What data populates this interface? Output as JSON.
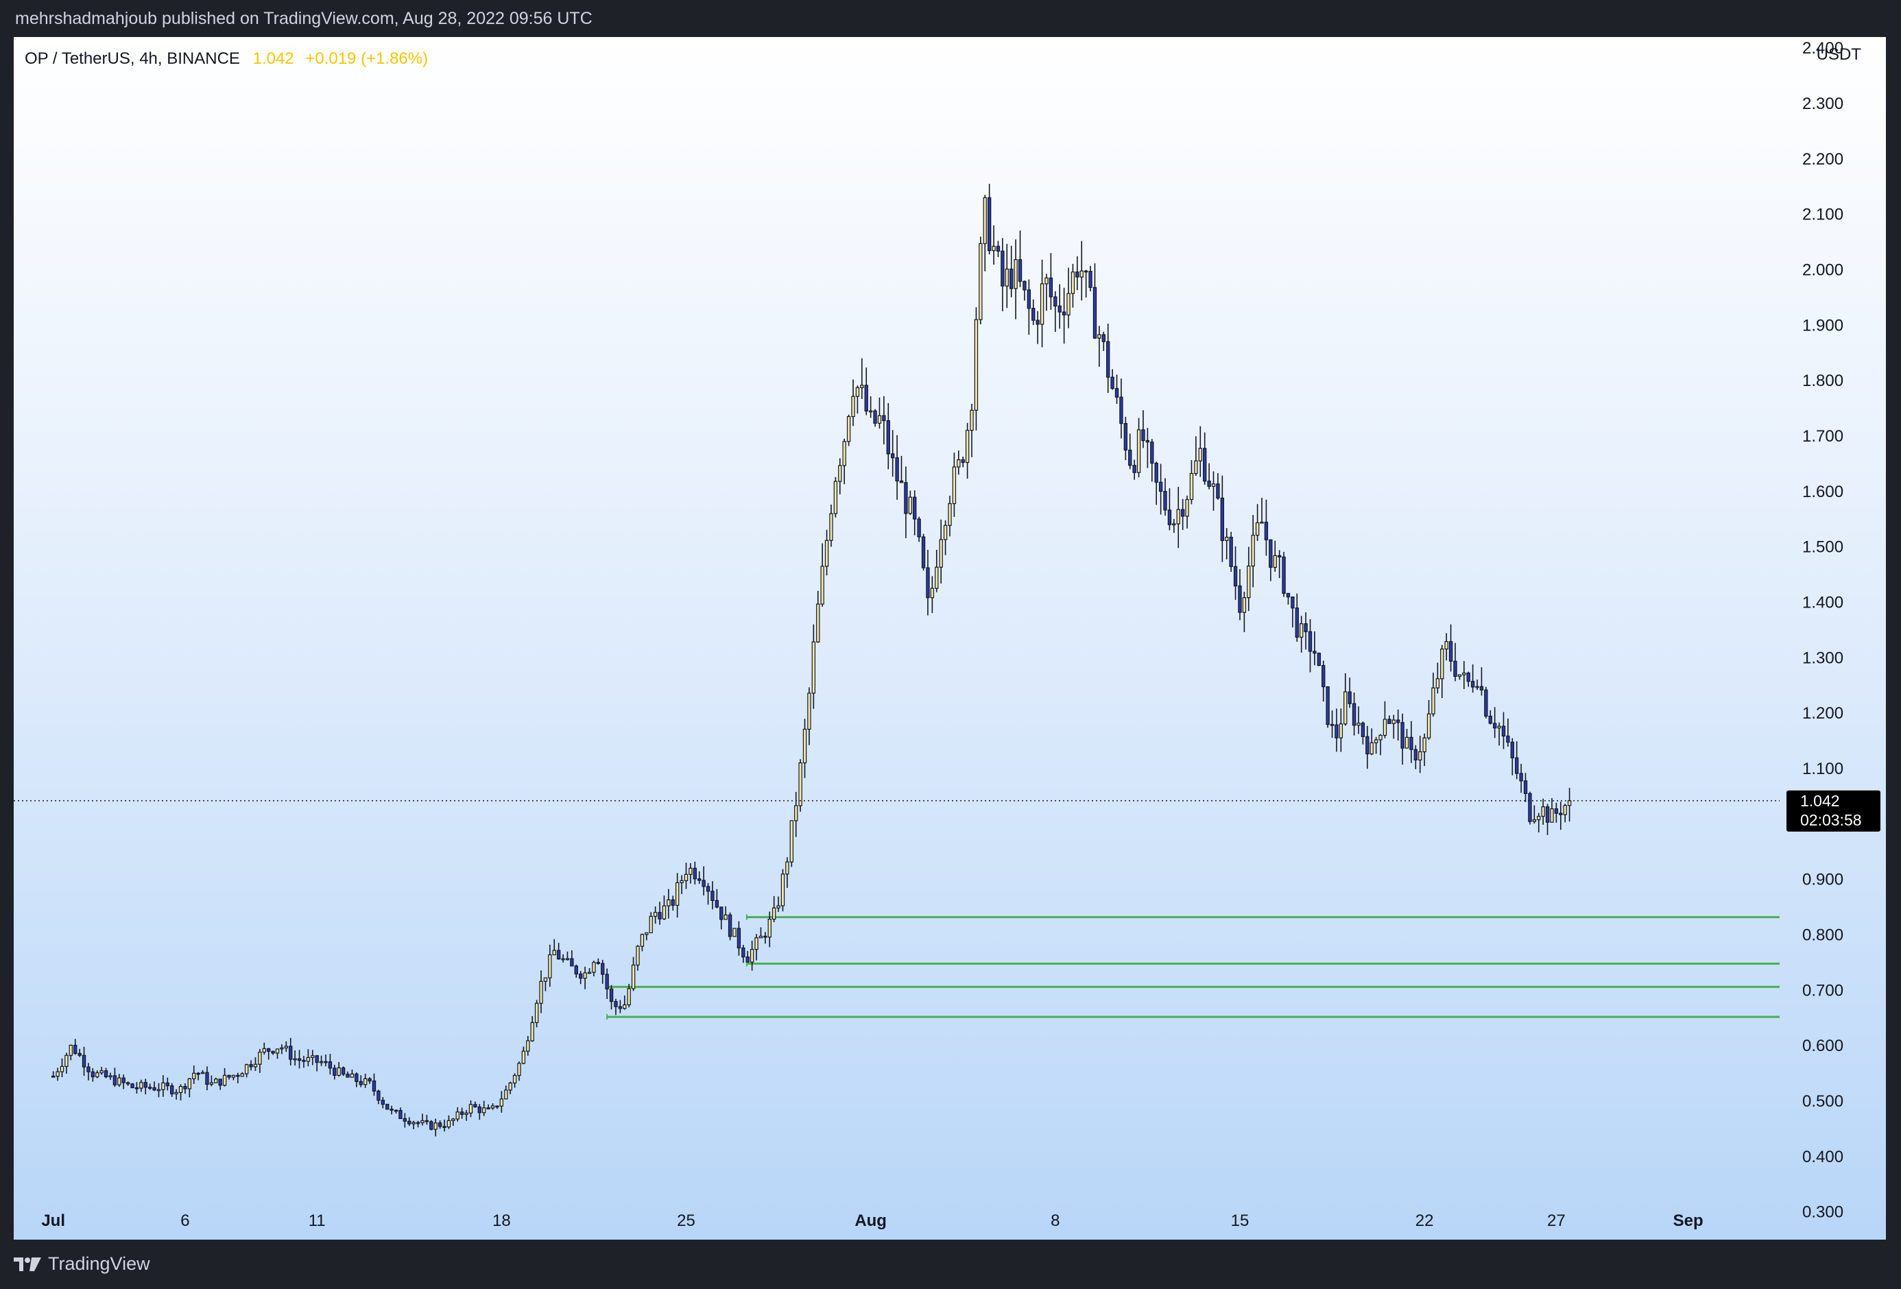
{
  "header": {
    "published_text": "mehrshadmahjoub published on TradingView.com, Aug 28, 2022 09:56 UTC"
  },
  "legend": {
    "symbol": "OP / TetherUS, 4h, BINANCE",
    "price": "1.042",
    "change": "+0.019 (+1.86%)"
  },
  "axis": {
    "currency": "USDT"
  },
  "price_badge": {
    "price": "1.042",
    "countdown": "02:03:58"
  },
  "footer": {
    "brand": "TradingView"
  },
  "colors": {
    "up": "#f2e6a6",
    "down": "#2b3ba8",
    "wick": "#131722",
    "zone": "#4caf50",
    "last_price_line": "#131722"
  },
  "chart_data": {
    "type": "candlestick",
    "timeframe": "4h",
    "symbol": "OP/USDT",
    "exchange": "BINANCE",
    "ylim": [
      0.25,
      2.42
    ],
    "y_ticks": [
      "0.300",
      "0.400",
      "0.500",
      "0.600",
      "0.700",
      "0.800",
      "0.900",
      "1.100",
      "1.200",
      "1.300",
      "1.400",
      "1.500",
      "1.600",
      "1.700",
      "1.800",
      "1.900",
      "2.000",
      "2.100",
      "2.200",
      "2.300",
      "2.400"
    ],
    "x_ticks": [
      {
        "label": "Jul",
        "day": 0,
        "bold": true
      },
      {
        "label": "6",
        "day": 5,
        "bold": false
      },
      {
        "label": "11",
        "day": 10,
        "bold": false
      },
      {
        "label": "18",
        "day": 17,
        "bold": false
      },
      {
        "label": "25",
        "day": 24,
        "bold": false
      },
      {
        "label": "Aug",
        "day": 31,
        "bold": true
      },
      {
        "label": "8",
        "day": 38,
        "bold": false
      },
      {
        "label": "15",
        "day": 45,
        "bold": false
      },
      {
        "label": "22",
        "day": 52,
        "bold": false
      },
      {
        "label": "27",
        "day": 57,
        "bold": false
      },
      {
        "label": "Sep",
        "day": 62,
        "bold": true
      }
    ],
    "xlim_days": [
      -1.5,
      69.5
    ],
    "last_price": 1.042,
    "close_path": [
      {
        "day": 0.0,
        "close": 0.545
      },
      {
        "day": 0.7,
        "close": 0.6
      },
      {
        "day": 1.5,
        "close": 0.55
      },
      {
        "day": 2.2,
        "close": 0.54
      },
      {
        "day": 3.0,
        "close": 0.525
      },
      {
        "day": 4.0,
        "close": 0.525
      },
      {
        "day": 4.8,
        "close": 0.52
      },
      {
        "day": 5.4,
        "close": 0.555
      },
      {
        "day": 6.0,
        "close": 0.53
      },
      {
        "day": 7.0,
        "close": 0.55
      },
      {
        "day": 8.0,
        "close": 0.59
      },
      {
        "day": 8.6,
        "close": 0.6
      },
      {
        "day": 9.2,
        "close": 0.575
      },
      {
        "day": 10.2,
        "close": 0.57
      },
      {
        "day": 11.0,
        "close": 0.545
      },
      {
        "day": 12.0,
        "close": 0.53
      },
      {
        "day": 12.8,
        "close": 0.48
      },
      {
        "day": 13.6,
        "close": 0.465
      },
      {
        "day": 14.2,
        "close": 0.455
      },
      {
        "day": 15.0,
        "close": 0.46
      },
      {
        "day": 15.8,
        "close": 0.49
      },
      {
        "day": 16.6,
        "close": 0.48
      },
      {
        "day": 17.2,
        "close": 0.52
      },
      {
        "day": 17.8,
        "close": 0.58
      },
      {
        "day": 18.4,
        "close": 0.7
      },
      {
        "day": 19.0,
        "close": 0.77
      },
      {
        "day": 19.6,
        "close": 0.74
      },
      {
        "day": 20.2,
        "close": 0.73
      },
      {
        "day": 20.6,
        "close": 0.77
      },
      {
        "day": 21.2,
        "close": 0.67
      },
      {
        "day": 21.7,
        "close": 0.675
      },
      {
        "day": 22.2,
        "close": 0.78
      },
      {
        "day": 22.8,
        "close": 0.84
      },
      {
        "day": 23.4,
        "close": 0.85
      },
      {
        "day": 24.0,
        "close": 0.92
      },
      {
        "day": 24.6,
        "close": 0.91
      },
      {
        "day": 25.2,
        "close": 0.85
      },
      {
        "day": 25.8,
        "close": 0.8
      },
      {
        "day": 26.3,
        "close": 0.76
      },
      {
        "day": 26.8,
        "close": 0.79
      },
      {
        "day": 27.4,
        "close": 0.84
      },
      {
        "day": 27.8,
        "close": 0.93
      },
      {
        "day": 28.2,
        "close": 1.05
      },
      {
        "day": 28.6,
        "close": 1.2
      },
      {
        "day": 28.9,
        "close": 1.35
      },
      {
        "day": 29.3,
        "close": 1.5
      },
      {
        "day": 29.6,
        "close": 1.62
      },
      {
        "day": 30.0,
        "close": 1.7
      },
      {
        "day": 30.3,
        "close": 1.8
      },
      {
        "day": 30.6,
        "close": 1.78
      },
      {
        "day": 31.0,
        "close": 1.72
      },
      {
        "day": 31.4,
        "close": 1.73
      },
      {
        "day": 31.8,
        "close": 1.65
      },
      {
        "day": 32.2,
        "close": 1.6
      },
      {
        "day": 32.6,
        "close": 1.55
      },
      {
        "day": 32.9,
        "close": 1.48
      },
      {
        "day": 33.2,
        "close": 1.38
      },
      {
        "day": 33.6,
        "close": 1.52
      },
      {
        "day": 34.0,
        "close": 1.6
      },
      {
        "day": 34.4,
        "close": 1.65
      },
      {
        "day": 34.8,
        "close": 1.75
      },
      {
        "day": 35.0,
        "close": 1.92
      },
      {
        "day": 35.3,
        "close": 2.1
      },
      {
        "day": 35.6,
        "close": 2.05
      },
      {
        "day": 36.0,
        "close": 1.97
      },
      {
        "day": 36.4,
        "close": 2.0
      },
      {
        "day": 36.8,
        "close": 1.95
      },
      {
        "day": 37.2,
        "close": 1.9
      },
      {
        "day": 37.6,
        "close": 1.98
      },
      {
        "day": 38.0,
        "close": 1.93
      },
      {
        "day": 38.4,
        "close": 1.95
      },
      {
        "day": 38.9,
        "close": 2.02
      },
      {
        "day": 39.3,
        "close": 1.94
      },
      {
        "day": 39.7,
        "close": 1.88
      },
      {
        "day": 40.1,
        "close": 1.8
      },
      {
        "day": 40.5,
        "close": 1.72
      },
      {
        "day": 40.9,
        "close": 1.65
      },
      {
        "day": 41.3,
        "close": 1.7
      },
      {
        "day": 41.7,
        "close": 1.62
      },
      {
        "day": 42.1,
        "close": 1.58
      },
      {
        "day": 42.5,
        "close": 1.55
      },
      {
        "day": 43.0,
        "close": 1.6
      },
      {
        "day": 43.5,
        "close": 1.67
      },
      {
        "day": 44.0,
        "close": 1.6
      },
      {
        "day": 44.5,
        "close": 1.5
      },
      {
        "day": 45.0,
        "close": 1.4
      },
      {
        "day": 45.4,
        "close": 1.48
      },
      {
        "day": 45.8,
        "close": 1.55
      },
      {
        "day": 46.2,
        "close": 1.48
      },
      {
        "day": 46.6,
        "close": 1.45
      },
      {
        "day": 47.0,
        "close": 1.38
      },
      {
        "day": 47.4,
        "close": 1.33
      },
      {
        "day": 47.8,
        "close": 1.32
      },
      {
        "day": 48.2,
        "close": 1.22
      },
      {
        "day": 48.6,
        "close": 1.15
      },
      {
        "day": 49.0,
        "close": 1.22
      },
      {
        "day": 49.5,
        "close": 1.18
      },
      {
        "day": 50.0,
        "close": 1.13
      },
      {
        "day": 50.5,
        "close": 1.2
      },
      {
        "day": 51.0,
        "close": 1.17
      },
      {
        "day": 51.5,
        "close": 1.12
      },
      {
        "day": 52.0,
        "close": 1.15
      },
      {
        "day": 52.4,
        "close": 1.25
      },
      {
        "day": 52.8,
        "close": 1.32
      },
      {
        "day": 53.2,
        "close": 1.28
      },
      {
        "day": 53.6,
        "close": 1.25
      },
      {
        "day": 54.0,
        "close": 1.27
      },
      {
        "day": 54.4,
        "close": 1.2
      },
      {
        "day": 54.8,
        "close": 1.18
      },
      {
        "day": 55.2,
        "close": 1.13
      },
      {
        "day": 55.6,
        "close": 1.08
      },
      {
        "day": 56.0,
        "close": 1.02
      },
      {
        "day": 56.4,
        "close": 1.03
      },
      {
        "day": 56.8,
        "close": 1.01
      },
      {
        "day": 57.2,
        "close": 1.03
      },
      {
        "day": 57.6,
        "close": 1.042
      }
    ],
    "zones": [
      {
        "price": 0.832,
        "start_day": 26.3
      },
      {
        "price": 0.748,
        "start_day": 26.3
      },
      {
        "price": 0.706,
        "start_day": 21.0
      },
      {
        "price": 0.652,
        "start_day": 21.0
      }
    ]
  }
}
